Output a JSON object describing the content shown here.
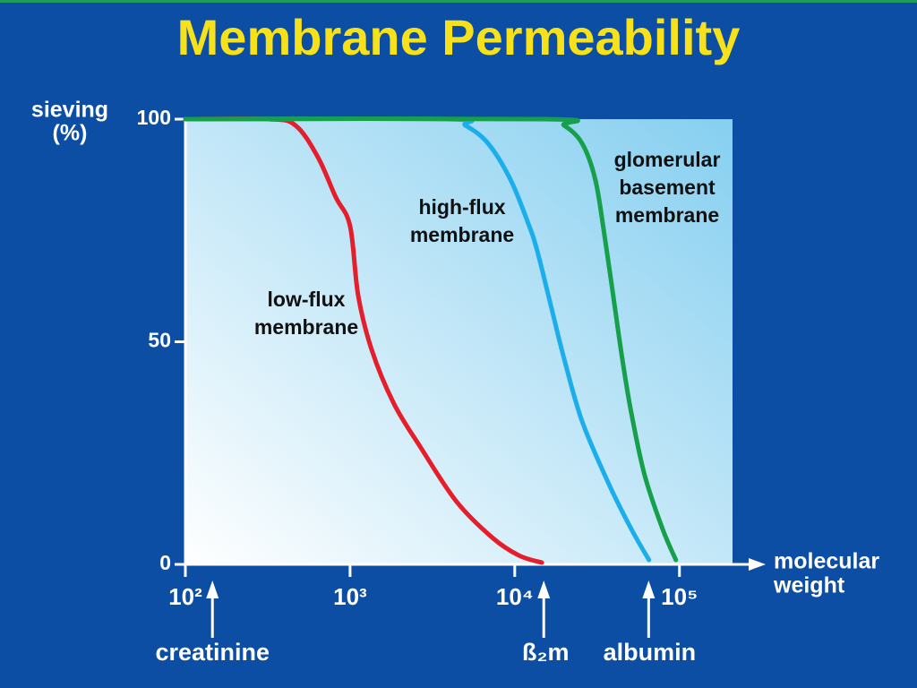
{
  "chart_data": {
    "type": "line",
    "title": "Membrane Permeability",
    "y_label": [
      "sieving",
      "(%)"
    ],
    "x_label": [
      "molecular",
      "weight"
    ],
    "log_x": true,
    "xlim": [
      100,
      210000
    ],
    "ylim": [
      0,
      100
    ],
    "xticks": [
      {
        "value": 100,
        "label": "10²"
      },
      {
        "value": 1000,
        "label": "10³"
      },
      {
        "value": 10000,
        "label": "10⁴"
      },
      {
        "value": 100000,
        "label": "10⁵"
      }
    ],
    "yticks": [
      0,
      50,
      100
    ],
    "series": [
      {
        "name": [
          "low-flux",
          "membrane"
        ],
        "color": "#e41f2b",
        "x": [
          100,
          320,
          466,
          637,
          818,
          1000,
          1120,
          1350,
          1840,
          2690,
          4430,
          7310,
          10600,
          14600
        ],
        "values": [
          100,
          100,
          98.6,
          91.5,
          82.5,
          76,
          60.4,
          48.3,
          36.2,
          26.2,
          14.1,
          6,
          2,
          0.4
        ]
      },
      {
        "name": [
          "high-flux",
          "membrane"
        ],
        "color": "#1caeea",
        "x": [
          100,
          3910,
          5020,
          6870,
          9400,
          12100,
          13700,
          16500,
          19900,
          25600,
          37200,
          50900,
          65300
        ],
        "values": [
          100,
          100,
          98.6,
          94.6,
          86.5,
          76.5,
          70.4,
          58.4,
          46.3,
          32.2,
          18.1,
          8,
          1
        ]
      },
      {
        "name": [
          "glomerular",
          "basement",
          "membrane"
        ],
        "color": "#16a04b",
        "x": [
          100,
          15500,
          19900,
          25600,
          30800,
          34900,
          39600,
          44900,
          50900,
          61400,
          78900,
          95100
        ],
        "values": [
          100,
          100,
          98.6,
          94.6,
          86.5,
          74.4,
          60.4,
          46.3,
          34.2,
          20.1,
          8,
          1
        ]
      }
    ],
    "markers": [
      {
        "label": "creatinine",
        "x": 146
      },
      {
        "label": "ß₂m",
        "x": 15000
      },
      {
        "label": "albumin",
        "x": 65000
      }
    ]
  }
}
